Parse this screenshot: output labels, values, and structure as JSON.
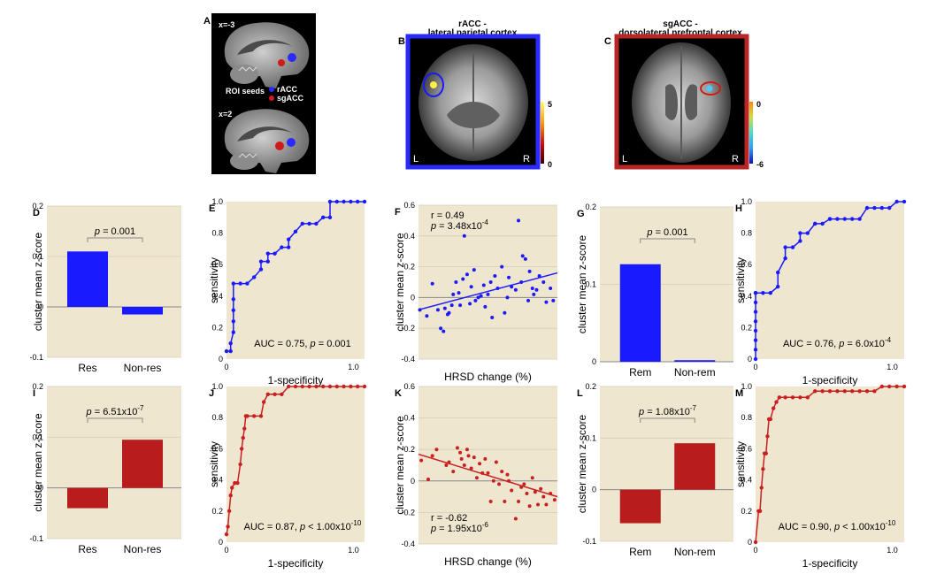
{
  "brain_panels": {
    "A": {
      "letter": "A",
      "slice_top": "x=-3",
      "slice_bottom": "x=2",
      "legend_title": "ROI seeds",
      "legend_items": [
        "rACC",
        "sgACC"
      ],
      "colors": [
        "#2a2aff",
        "#d01a1a"
      ]
    },
    "B": {
      "letter": "B",
      "title_line1": "rACC -",
      "title_line2": "lateral parietal cortex",
      "left_label": "L",
      "right_label": "R",
      "scale_max": "5",
      "scale_min": "0",
      "frame_color": "#2a2aff"
    },
    "C": {
      "letter": "C",
      "title_line1": "sgACC -",
      "title_line2": "dorsolateral prefrontal cortex",
      "left_label": "L",
      "right_label": "R",
      "scale_max": "0",
      "scale_min": "-6",
      "frame_color": "#b82626"
    }
  },
  "chart_data": [
    {
      "id": "D",
      "type": "bar",
      "color": "#1a1aff",
      "categories": [
        "Res",
        "Non-res"
      ],
      "values": [
        0.11,
        -0.015
      ],
      "ylabel": "cluster mean z-score",
      "ylim": [
        -0.1,
        0.2
      ],
      "yticks": [
        "0.2",
        "0.1",
        "0",
        "-0.1"
      ],
      "pvalue_label": "p",
      "pvalue_text": " = 0.001"
    },
    {
      "id": "E",
      "type": "line",
      "color": "#1a1aff",
      "xlabel": "1-specificity",
      "ylabel": "sensitivity",
      "xlim": [
        0,
        1
      ],
      "ylim": [
        0,
        1
      ],
      "yticks": [
        "1.0",
        "0.8",
        "0.6",
        "0.4",
        "0.2",
        "0"
      ],
      "xticks": [
        "0",
        "1.0"
      ],
      "x": [
        0,
        0.03,
        0.03,
        0.05,
        0.05,
        0.05,
        0.05,
        0.05,
        0.1,
        0.15,
        0.2,
        0.25,
        0.25,
        0.3,
        0.3,
        0.35,
        0.4,
        0.45,
        0.45,
        0.5,
        0.55,
        0.6,
        0.65,
        0.7,
        0.75,
        0.75,
        0.8,
        0.85,
        0.9,
        0.95,
        1.0
      ],
      "y": [
        0.05,
        0.05,
        0.1,
        0.17,
        0.24,
        0.31,
        0.38,
        0.48,
        0.48,
        0.48,
        0.52,
        0.57,
        0.62,
        0.62,
        0.67,
        0.67,
        0.71,
        0.71,
        0.76,
        0.81,
        0.86,
        0.86,
        0.86,
        0.9,
        0.9,
        1.0,
        1.0,
        1.0,
        1.0,
        1.0,
        1.0
      ],
      "auc_text": "AUC = 0.75, ",
      "p_label": "p",
      "p_text": " = 0.001"
    },
    {
      "id": "F",
      "type": "scatter",
      "color": "#1a1aff",
      "xlabel": "HRSD change (%)",
      "ylabel": "cluster mean z-score",
      "xlim": [
        0,
        1
      ],
      "ylim": [
        -0.4,
        0.6
      ],
      "yticks": [
        "0.6",
        "0.4",
        "0.2",
        "0",
        "-0.2",
        "-0.4"
      ],
      "fit": [
        -0.08,
        0.16
      ],
      "x": [
        0.01,
        0.06,
        0.1,
        0.14,
        0.16,
        0.18,
        0.19,
        0.21,
        0.22,
        0.24,
        0.25,
        0.27,
        0.29,
        0.3,
        0.32,
        0.33,
        0.35,
        0.37,
        0.38,
        0.4,
        0.41,
        0.43,
        0.45,
        0.47,
        0.48,
        0.5,
        0.52,
        0.53,
        0.55,
        0.57,
        0.6,
        0.62,
        0.64,
        0.65,
        0.67,
        0.7,
        0.72,
        0.74,
        0.75,
        0.77,
        0.79,
        0.8,
        0.82,
        0.83,
        0.85,
        0.87,
        0.9,
        0.92,
        0.95,
        0.97
      ],
      "y": [
        -0.08,
        -0.12,
        0.09,
        -0.08,
        -0.2,
        -0.22,
        -0.07,
        -0.11,
        -0.1,
        -0.05,
        0.02,
        0.1,
        0.03,
        -0.05,
        0.12,
        0.4,
        0.15,
        -0.04,
        0.07,
        0.18,
        -0.02,
        0.0,
        0.01,
        0.08,
        -0.06,
        0.02,
        0.1,
        -0.13,
        0.14,
        0.06,
        0.2,
        -0.1,
        0.0,
        0.13,
        0.07,
        0.05,
        0.5,
        0.1,
        0.27,
        0.25,
        -0.02,
        0.17,
        0.06,
        0.02,
        0.05,
        0.14,
        0.1,
        -0.03,
        0.06,
        -0.02
      ],
      "r_text": "r = 0.49",
      "p_label": "p",
      "p_text": " = 3.48x10",
      "p_exp": "-4"
    },
    {
      "id": "G",
      "type": "bar",
      "color": "#1a1aff",
      "categories": [
        "Rem",
        "Non-rem"
      ],
      "values": [
        0.126,
        0.002
      ],
      "ylabel": "cluster mean z-score",
      "ylim": [
        0,
        0.2
      ],
      "yticks": [
        "0.2",
        "0.1",
        "0"
      ],
      "pvalue_label": "p",
      "pvalue_text": " = 0.001"
    },
    {
      "id": "H",
      "type": "line",
      "color": "#1a1aff",
      "xlabel": "1-specificity",
      "ylabel": "sensitivity",
      "xlim": [
        0,
        1
      ],
      "ylim": [
        0,
        1
      ],
      "yticks": [
        "1.0",
        "0.8",
        "0.6",
        "0.4",
        "0.2",
        "0"
      ],
      "xticks": [
        "0",
        "1.0"
      ],
      "x": [
        0,
        0,
        0,
        0,
        0,
        0,
        0,
        0,
        0,
        0.05,
        0.1,
        0.15,
        0.15,
        0.2,
        0.2,
        0.25,
        0.3,
        0.3,
        0.35,
        0.4,
        0.4,
        0.45,
        0.5,
        0.5,
        0.55,
        0.6,
        0.65,
        0.7,
        0.75,
        0.8,
        0.85,
        0.9,
        0.95,
        1.0
      ],
      "y": [
        0.0,
        0.06,
        0.12,
        0.18,
        0.24,
        0.3,
        0.36,
        0.42,
        0.42,
        0.42,
        0.42,
        0.46,
        0.55,
        0.64,
        0.71,
        0.71,
        0.75,
        0.8,
        0.8,
        0.86,
        0.86,
        0.86,
        0.89,
        0.89,
        0.89,
        0.89,
        0.89,
        0.89,
        0.96,
        0.96,
        0.96,
        0.96,
        1.0,
        1.0
      ],
      "auc_text": "AUC = 0.76, ",
      "p_label": "p",
      "p_text": " = 6.0x10",
      "p_exp": "-4"
    },
    {
      "id": "I",
      "type": "bar",
      "color": "#b81c1c",
      "categories": [
        "Res",
        "Non-res"
      ],
      "values": [
        -0.04,
        0.095
      ],
      "ylabel": "cluster mean z-score",
      "ylim": [
        -0.1,
        0.2
      ],
      "yticks": [
        "0.2",
        "0.1",
        "0",
        "-0.1"
      ],
      "pvalue_label": "p",
      "pvalue_text": " = 6.51x10",
      "pvalue_exp": "-7"
    },
    {
      "id": "J",
      "type": "line",
      "color": "#c82020",
      "xlabel": "1-specificity",
      "ylabel": "sensitivity",
      "xlim": [
        0,
        1
      ],
      "ylim": [
        0,
        1
      ],
      "yticks": [
        "1.0",
        "0.8",
        "0.6",
        "0.4",
        "0.2",
        "0"
      ],
      "xticks": [
        "0",
        "1.0"
      ],
      "x": [
        0,
        0.01,
        0.02,
        0.03,
        0.04,
        0.06,
        0.08,
        0.1,
        0.11,
        0.12,
        0.13,
        0.14,
        0.15,
        0.2,
        0.25,
        0.27,
        0.3,
        0.35,
        0.4,
        0.45,
        0.5,
        0.55,
        0.6,
        0.65,
        0.7,
        0.75,
        0.8,
        0.85,
        0.9,
        0.95,
        1.0
      ],
      "y": [
        0.05,
        0.1,
        0.2,
        0.3,
        0.35,
        0.38,
        0.38,
        0.5,
        0.6,
        0.67,
        0.73,
        0.81,
        0.81,
        0.81,
        0.81,
        0.9,
        0.95,
        0.95,
        0.95,
        1.0,
        1.0,
        1.0,
        1.0,
        1.0,
        1.0,
        1.0,
        1.0,
        1.0,
        1.0,
        1.0,
        1.0
      ],
      "auc_text": "AUC = 0.87, ",
      "p_label": "p",
      "p_text": " < 1.00x10",
      "p_exp": "-10"
    },
    {
      "id": "K",
      "type": "scatter",
      "color": "#c82020",
      "xlabel": "HRSD change (%)",
      "ylabel": "cluster mean z-score",
      "xlim": [
        0,
        1
      ],
      "ylim": [
        -0.4,
        0.6
      ],
      "yticks": [
        "0.6",
        "0.4",
        "0.2",
        "0",
        "-0.2",
        "-0.4"
      ],
      "fit": [
        0.17,
        -0.1
      ],
      "x": [
        0.02,
        0.07,
        0.1,
        0.13,
        0.2,
        0.22,
        0.25,
        0.28,
        0.3,
        0.31,
        0.33,
        0.35,
        0.36,
        0.38,
        0.4,
        0.42,
        0.44,
        0.46,
        0.48,
        0.5,
        0.52,
        0.54,
        0.56,
        0.58,
        0.6,
        0.62,
        0.64,
        0.65,
        0.67,
        0.7,
        0.72,
        0.74,
        0.76,
        0.78,
        0.8,
        0.82,
        0.84,
        0.86,
        0.88,
        0.9,
        0.92,
        0.95,
        0.98
      ],
      "y": [
        0.13,
        0.01,
        0.16,
        0.2,
        0.1,
        0.12,
        0.06,
        0.21,
        0.18,
        0.14,
        0.1,
        0.2,
        0.16,
        0.08,
        0.15,
        0.02,
        0.11,
        0.05,
        0.14,
        0.05,
        -0.13,
        0.0,
        0.12,
        -0.02,
        0.06,
        -0.13,
        0.04,
        0.0,
        -0.06,
        -0.24,
        -0.13,
        -0.04,
        -0.02,
        -0.08,
        -0.16,
        0.02,
        -0.07,
        -0.15,
        -0.05,
        -0.1,
        -0.15,
        -0.08,
        -0.12
      ],
      "r_text": "r = -0.62",
      "p_label": "p",
      "p_text": " = 1.95x10",
      "p_exp": "-6"
    },
    {
      "id": "L",
      "type": "bar",
      "color": "#b81c1c",
      "categories": [
        "Rem",
        "Non-rem"
      ],
      "values": [
        -0.065,
        0.09
      ],
      "ylabel": "cluster mean z-score",
      "ylim": [
        -0.1,
        0.2
      ],
      "yticks": [
        "0.2",
        "0.1",
        "0",
        "-0.1"
      ],
      "pvalue_label": "p",
      "pvalue_text": " = 1.08x10",
      "pvalue_exp": "-7"
    },
    {
      "id": "M",
      "type": "line",
      "color": "#c82020",
      "xlabel": "1-specificity",
      "ylabel": "sensitivity",
      "xlim": [
        0,
        1
      ],
      "ylim": [
        0,
        1
      ],
      "yticks": [
        "1.0",
        "0.8",
        "0.6",
        "0.4",
        "0.2",
        "0"
      ],
      "xticks": [
        "0",
        "1.0"
      ],
      "x": [
        0,
        0.02,
        0.03,
        0.04,
        0.05,
        0.06,
        0.07,
        0.08,
        0.09,
        0.1,
        0.12,
        0.14,
        0.16,
        0.2,
        0.25,
        0.3,
        0.35,
        0.4,
        0.45,
        0.5,
        0.55,
        0.6,
        0.65,
        0.7,
        0.75,
        0.8,
        0.85,
        0.9,
        0.95,
        1.0
      ],
      "y": [
        0.0,
        0.2,
        0.2,
        0.35,
        0.47,
        0.57,
        0.57,
        0.68,
        0.79,
        0.79,
        0.86,
        0.9,
        0.93,
        0.93,
        0.93,
        0.93,
        0.93,
        0.97,
        0.97,
        0.97,
        0.97,
        0.97,
        0.97,
        0.97,
        0.97,
        0.97,
        1.0,
        1.0,
        1.0,
        1.0
      ],
      "auc_text": "AUC = 0.90, ",
      "p_label": "p",
      "p_text": " < 1.00x10",
      "p_exp": "-10"
    }
  ]
}
